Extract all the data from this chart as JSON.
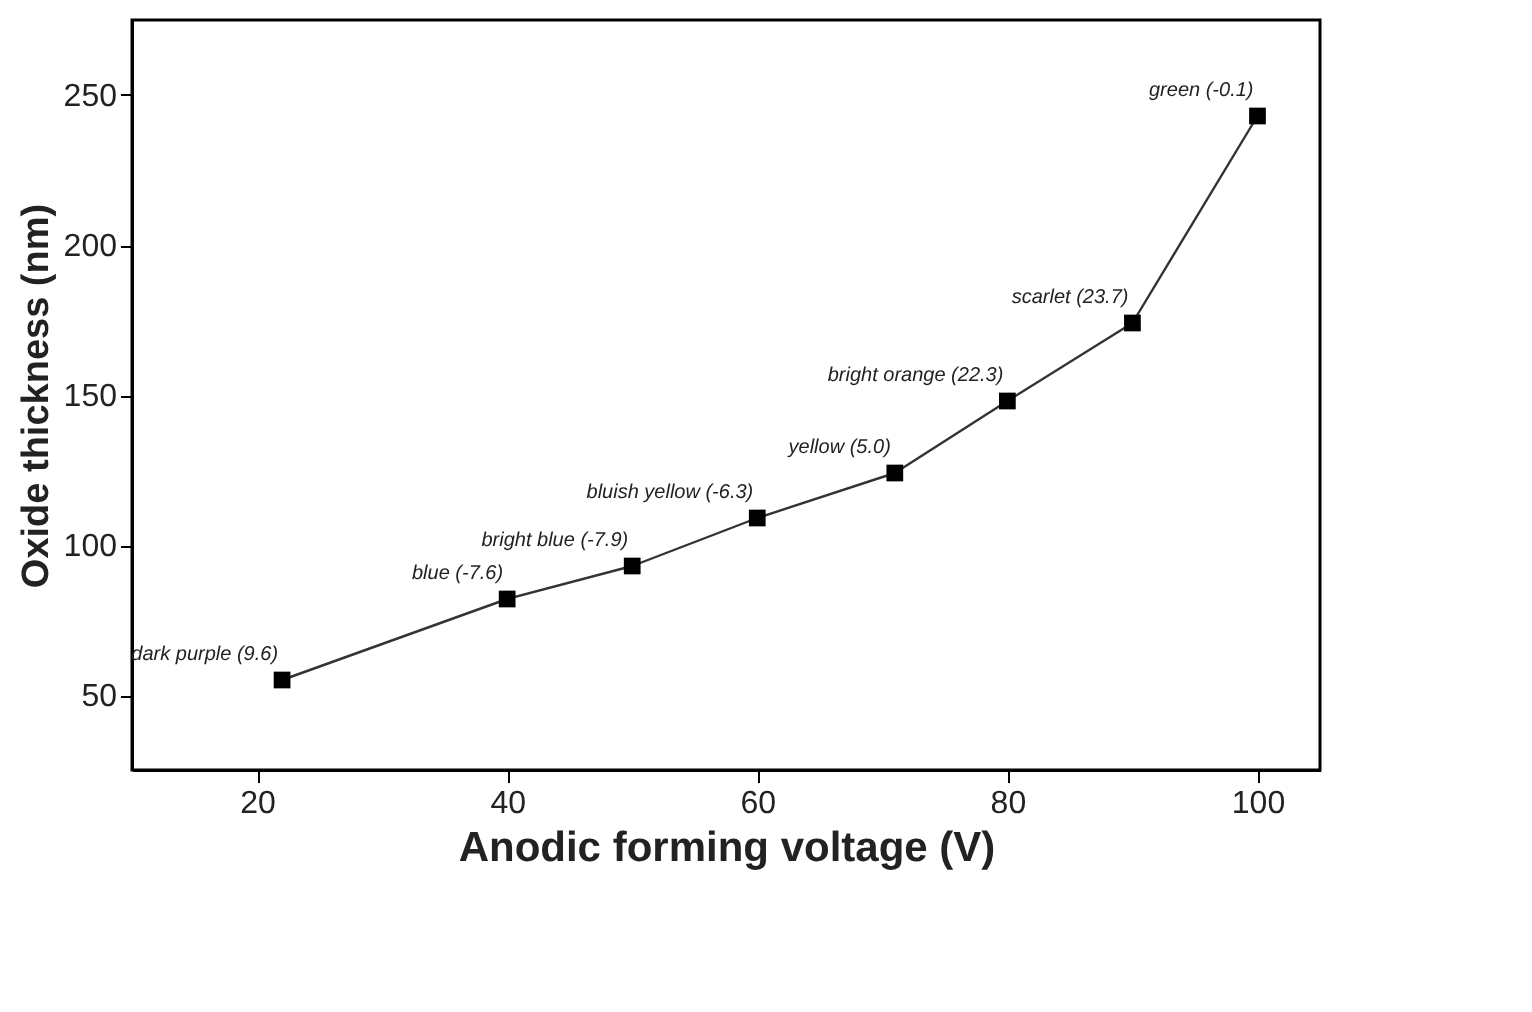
{
  "chart_data": {
    "type": "line",
    "xlabel": "Anodic forming voltage (V)",
    "ylabel": "Oxide thickness (nm)",
    "x": [
      22,
      40,
      50,
      60,
      71,
      80,
      90,
      100
    ],
    "series": [
      {
        "color": "#333333",
        "values": [
          55,
          82,
          93,
          109,
          124,
          148,
          174,
          243
        ]
      }
    ],
    "xlim": [
      10,
      105
    ],
    "ylim": [
      25,
      275
    ],
    "xticks": [
      20,
      40,
      60,
      80,
      100
    ],
    "yticks": [
      50,
      100,
      150,
      200,
      250
    ],
    "marker": "square",
    "line_style": "solid",
    "annotations": [
      {
        "text": "dark purple (9.6)",
        "x": 22,
        "y": 55
      },
      {
        "text": "blue (-7.6)",
        "x": 40,
        "y": 82
      },
      {
        "text": "bright blue (-7.9)",
        "x": 50,
        "y": 93
      },
      {
        "text": "bluish yellow (-6.3)",
        "x": 60,
        "y": 109
      },
      {
        "text": "yellow (5.0)",
        "x": 71,
        "y": 124
      },
      {
        "text": "bright orange (22.3)",
        "x": 80,
        "y": 148
      },
      {
        "text": "scarlet (23.7)",
        "x": 90,
        "y": 174
      },
      {
        "text": "green (-0.1)",
        "x": 100,
        "y": 243
      }
    ]
  }
}
